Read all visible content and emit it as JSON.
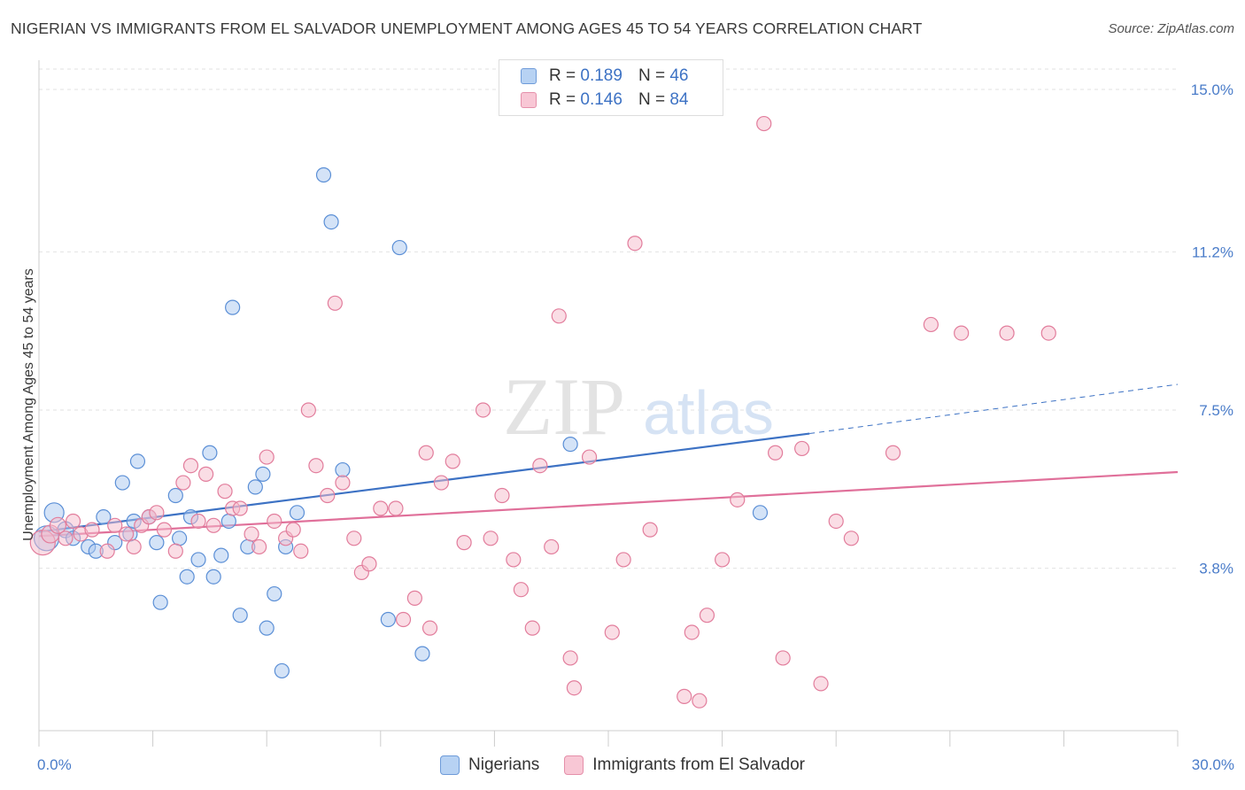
{
  "title": "NIGERIAN VS IMMIGRANTS FROM EL SALVADOR UNEMPLOYMENT AMONG AGES 45 TO 54 YEARS CORRELATION CHART",
  "source": "Source: ZipAtlas.com",
  "watermark": {
    "zip": "ZIP",
    "atlas": "atlas"
  },
  "legend_top": [
    {
      "r_label": "R =",
      "r_value": "0.189",
      "n_label": "N =",
      "n_value": "46"
    },
    {
      "r_label": "R =",
      "r_value": "0.146",
      "n_label": "N =",
      "n_value": "84"
    }
  ],
  "chart_data": {
    "type": "scatter",
    "ylabel": "Unemployment Among Ages 45 to 54 years",
    "xlim": [
      0,
      30
    ],
    "ylim": [
      0,
      15.6
    ],
    "x_tick_labels": [
      "0.0%",
      "30.0%"
    ],
    "y_ticks": [
      {
        "value": 3.8,
        "label": "3.8%"
      },
      {
        "value": 7.5,
        "label": "7.5%"
      },
      {
        "value": 11.2,
        "label": "11.2%"
      },
      {
        "value": 15.0,
        "label": "15.0%"
      }
    ],
    "grid": "horizontal dashed",
    "legend_placement": "top-center and bottom",
    "series": [
      {
        "name": "Nigerians",
        "color": "#a9c8ef",
        "stroke": "#5b8fd6",
        "trend": {
          "x0": 0,
          "y0": 4.65,
          "x1": 20.3,
          "y1": 6.95,
          "dashed_to_x": 30,
          "dashed_to_y": 8.1,
          "color": "#3d72c4"
        },
        "points": [
          [
            0.2,
            4.5,
            14
          ],
          [
            0.4,
            5.1,
            11
          ],
          [
            0.7,
            4.7,
            9
          ],
          [
            0.9,
            4.5,
            8
          ],
          [
            1.3,
            4.3,
            8
          ],
          [
            1.5,
            4.2,
            8
          ],
          [
            1.7,
            5.0,
            8
          ],
          [
            2.0,
            4.4,
            8
          ],
          [
            2.2,
            5.8,
            8
          ],
          [
            2.4,
            4.6,
            8
          ],
          [
            2.5,
            4.9,
            8
          ],
          [
            2.6,
            6.3,
            8
          ],
          [
            2.9,
            5.0,
            8
          ],
          [
            3.1,
            4.4,
            8
          ],
          [
            3.2,
            3.0,
            8
          ],
          [
            3.6,
            5.5,
            8
          ],
          [
            3.7,
            4.5,
            8
          ],
          [
            3.9,
            3.6,
            8
          ],
          [
            4.0,
            5.0,
            8
          ],
          [
            4.2,
            4.0,
            8
          ],
          [
            4.5,
            6.5,
            8
          ],
          [
            4.6,
            3.6,
            8
          ],
          [
            4.8,
            4.1,
            8
          ],
          [
            5.0,
            4.9,
            8
          ],
          [
            5.1,
            9.9,
            8
          ],
          [
            5.3,
            2.7,
            8
          ],
          [
            5.5,
            4.3,
            8
          ],
          [
            5.7,
            5.7,
            8
          ],
          [
            5.9,
            6.0,
            8
          ],
          [
            6.0,
            2.4,
            8
          ],
          [
            6.2,
            3.2,
            8
          ],
          [
            6.4,
            1.4,
            8
          ],
          [
            6.5,
            4.3,
            8
          ],
          [
            6.8,
            5.1,
            8
          ],
          [
            7.5,
            13.0,
            8
          ],
          [
            7.7,
            11.9,
            8
          ],
          [
            8.0,
            6.1,
            8
          ],
          [
            9.2,
            2.6,
            8
          ],
          [
            9.5,
            11.3,
            8
          ],
          [
            10.1,
            1.8,
            8
          ],
          [
            14.0,
            6.7,
            8
          ],
          [
            19.0,
            5.1,
            8
          ]
        ]
      },
      {
        "name": "Immigrants from El Salvador",
        "color": "#f6bccc",
        "stroke": "#e27d9c",
        "trend": {
          "x0": 0,
          "y0": 4.55,
          "x1": 30,
          "y1": 6.05,
          "color": "#e0709a"
        },
        "points": [
          [
            0.1,
            4.4,
            14
          ],
          [
            0.3,
            4.6,
            10
          ],
          [
            0.5,
            4.8,
            9
          ],
          [
            0.7,
            4.5,
            8
          ],
          [
            0.9,
            4.9,
            8
          ],
          [
            1.1,
            4.6,
            8
          ],
          [
            1.4,
            4.7,
            8
          ],
          [
            1.8,
            4.2,
            8
          ],
          [
            2.0,
            4.8,
            8
          ],
          [
            2.3,
            4.6,
            8
          ],
          [
            2.5,
            4.3,
            8
          ],
          [
            2.7,
            4.8,
            8
          ],
          [
            2.9,
            5.0,
            8
          ],
          [
            3.1,
            5.1,
            8
          ],
          [
            3.3,
            4.7,
            8
          ],
          [
            3.6,
            4.2,
            8
          ],
          [
            3.8,
            5.8,
            8
          ],
          [
            4.0,
            6.2,
            8
          ],
          [
            4.2,
            4.9,
            8
          ],
          [
            4.4,
            6.0,
            8
          ],
          [
            4.6,
            4.8,
            8
          ],
          [
            4.9,
            5.6,
            8
          ],
          [
            5.1,
            5.2,
            8
          ],
          [
            5.3,
            5.2,
            8
          ],
          [
            5.6,
            4.6,
            8
          ],
          [
            5.8,
            4.3,
            8
          ],
          [
            6.0,
            6.4,
            8
          ],
          [
            6.2,
            4.9,
            8
          ],
          [
            6.5,
            4.5,
            8
          ],
          [
            6.7,
            4.7,
            8
          ],
          [
            6.9,
            4.2,
            8
          ],
          [
            7.1,
            7.5,
            8
          ],
          [
            7.3,
            6.2,
            8
          ],
          [
            7.6,
            5.5,
            8
          ],
          [
            7.8,
            10.0,
            8
          ],
          [
            8.0,
            5.8,
            8
          ],
          [
            8.3,
            4.5,
            8
          ],
          [
            8.5,
            3.7,
            8
          ],
          [
            8.7,
            3.9,
            8
          ],
          [
            9.0,
            5.2,
            8
          ],
          [
            9.4,
            5.2,
            8
          ],
          [
            9.6,
            2.6,
            8
          ],
          [
            9.9,
            3.1,
            8
          ],
          [
            10.2,
            6.5,
            8
          ],
          [
            10.3,
            2.4,
            8
          ],
          [
            10.6,
            5.8,
            8
          ],
          [
            10.9,
            6.3,
            8
          ],
          [
            11.2,
            4.4,
            8
          ],
          [
            11.7,
            7.5,
            8
          ],
          [
            11.9,
            4.5,
            8
          ],
          [
            12.2,
            5.5,
            8
          ],
          [
            12.5,
            4.0,
            8
          ],
          [
            12.7,
            3.3,
            8
          ],
          [
            13.0,
            2.4,
            8
          ],
          [
            13.2,
            6.2,
            8
          ],
          [
            13.5,
            4.3,
            8
          ],
          [
            13.7,
            9.7,
            8
          ],
          [
            14.0,
            1.7,
            8
          ],
          [
            14.1,
            1.0,
            8
          ],
          [
            14.5,
            6.4,
            8
          ],
          [
            15.1,
            2.3,
            8
          ],
          [
            15.4,
            4.0,
            8
          ],
          [
            15.7,
            11.4,
            8
          ],
          [
            16.1,
            4.7,
            8
          ],
          [
            17.0,
            0.8,
            8
          ],
          [
            17.2,
            2.3,
            8
          ],
          [
            17.4,
            0.7,
            8
          ],
          [
            17.6,
            2.7,
            8
          ],
          [
            18.0,
            4.0,
            8
          ],
          [
            18.4,
            5.4,
            8
          ],
          [
            19.1,
            14.2,
            8
          ],
          [
            19.4,
            6.5,
            8
          ],
          [
            19.6,
            1.7,
            8
          ],
          [
            20.1,
            6.6,
            8
          ],
          [
            20.6,
            1.1,
            8
          ],
          [
            21.0,
            4.9,
            8
          ],
          [
            21.4,
            4.5,
            8
          ],
          [
            22.5,
            6.5,
            8
          ],
          [
            23.5,
            9.5,
            8
          ],
          [
            24.3,
            9.3,
            8
          ],
          [
            25.5,
            9.3,
            8
          ],
          [
            26.6,
            9.3,
            8
          ]
        ]
      }
    ]
  },
  "legend_bottom": [
    {
      "label": "Nigerians",
      "color": "#b7d2f3",
      "stroke": "#6e9bd9"
    },
    {
      "label": "Immigrants from El Salvador",
      "color": "#f8c7d5",
      "stroke": "#e590aa"
    }
  ]
}
